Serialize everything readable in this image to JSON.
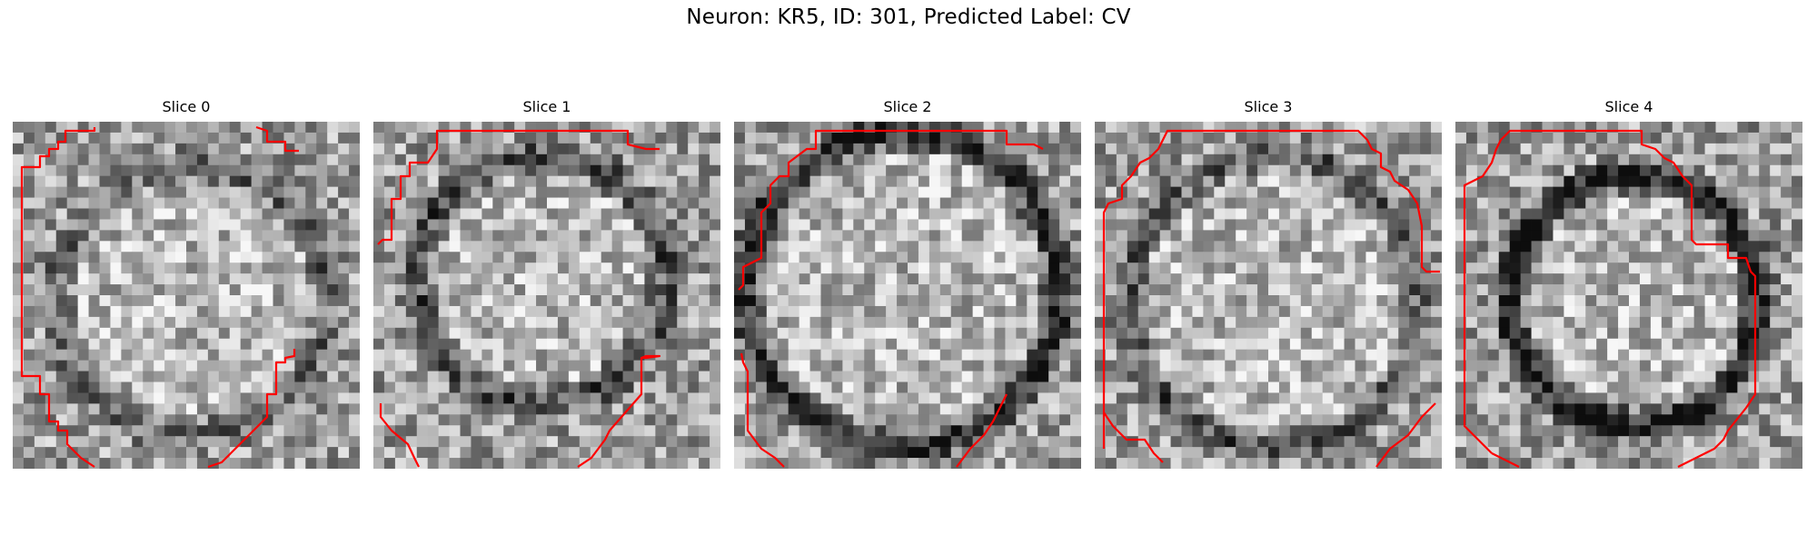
{
  "figure": {
    "title": "Neuron: KR5, ID: 301, Predicted Label: CV"
  },
  "panels": [
    {
      "title": "Slice 0"
    },
    {
      "title": "Slice 1"
    },
    {
      "title": "Slice 2"
    },
    {
      "title": "Slice 3"
    },
    {
      "title": "Slice 4"
    }
  ],
  "colors": {
    "contour": "#ff0000",
    "colormap": "grayscale"
  }
}
